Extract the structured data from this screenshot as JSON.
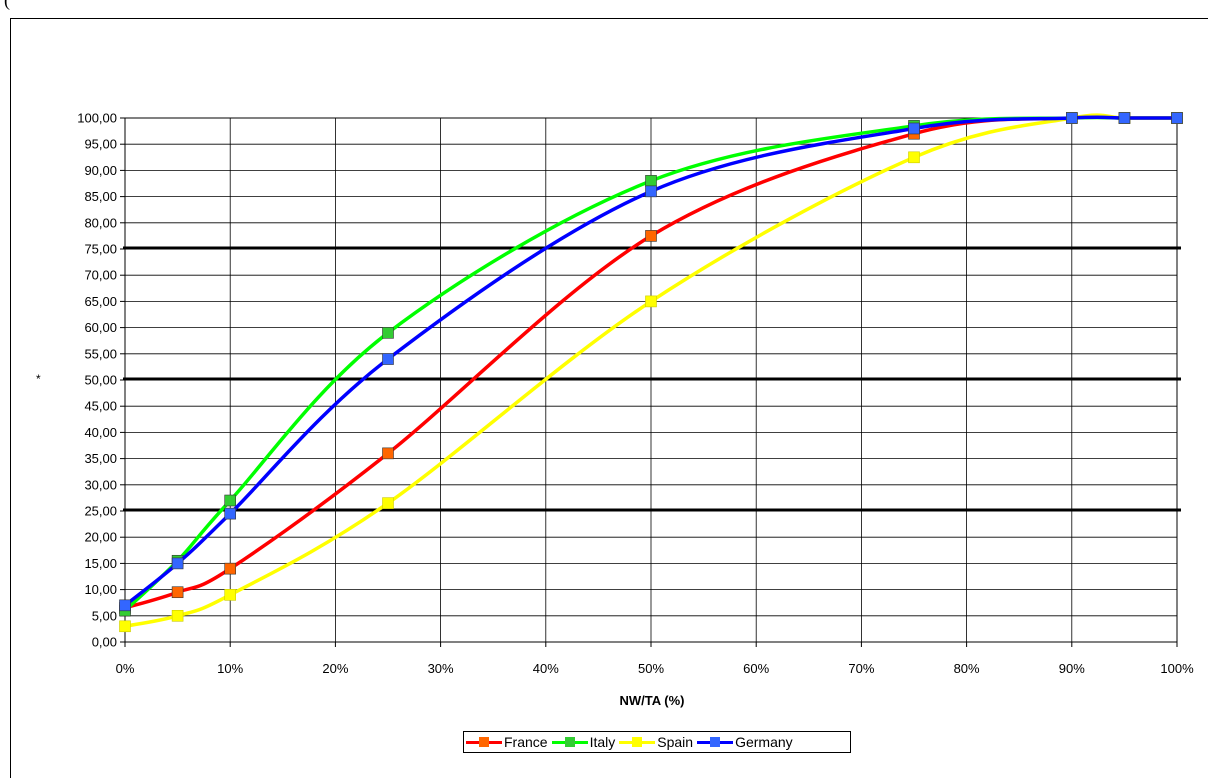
{
  "top_fragment": "(",
  "chart_data": {
    "type": "line",
    "title": "",
    "xlabel": "NW/TA (%)",
    "ylabel": "*",
    "x": [
      0,
      5,
      10,
      25,
      50,
      75,
      90,
      95,
      100
    ],
    "x_ticks": [
      "0%",
      "10%",
      "20%",
      "30%",
      "40%",
      "50%",
      "60%",
      "70%",
      "80%",
      "90%",
      "100%"
    ],
    "y_ticks": [
      "0,00",
      "5,00",
      "10,00",
      "15,00",
      "20,00",
      "25,00",
      "30,00",
      "35,00",
      "40,00",
      "45,00",
      "50,00",
      "55,00",
      "60,00",
      "65,00",
      "70,00",
      "75,00",
      "80,00",
      "85,00",
      "90,00",
      "95,00",
      "100,00"
    ],
    "xlim": [
      0,
      100
    ],
    "ylim": [
      0,
      100
    ],
    "grid": true,
    "reference_lines": [
      25,
      50,
      75
    ],
    "legend_position": "bottom",
    "series": [
      {
        "name": "France",
        "color": "#ff0000",
        "marker_color": "#ff6600",
        "values": [
          6.5,
          9.5,
          14,
          36,
          77.5,
          97,
          100,
          100,
          100
        ]
      },
      {
        "name": "Italy",
        "color": "#00ff00",
        "marker_color": "#33cc33",
        "values": [
          6,
          15.5,
          27,
          59,
          88,
          98.5,
          100,
          100,
          100
        ]
      },
      {
        "name": "Spain",
        "color": "#ffff00",
        "marker_color": "#ffff00",
        "values": [
          3,
          5,
          9,
          26.5,
          65,
          92.5,
          100,
          100,
          100
        ]
      },
      {
        "name": "Germany",
        "color": "#0000ff",
        "marker_color": "#3366ff",
        "values": [
          7,
          15,
          24.5,
          54,
          86,
          98,
          100,
          100,
          100
        ]
      }
    ]
  }
}
